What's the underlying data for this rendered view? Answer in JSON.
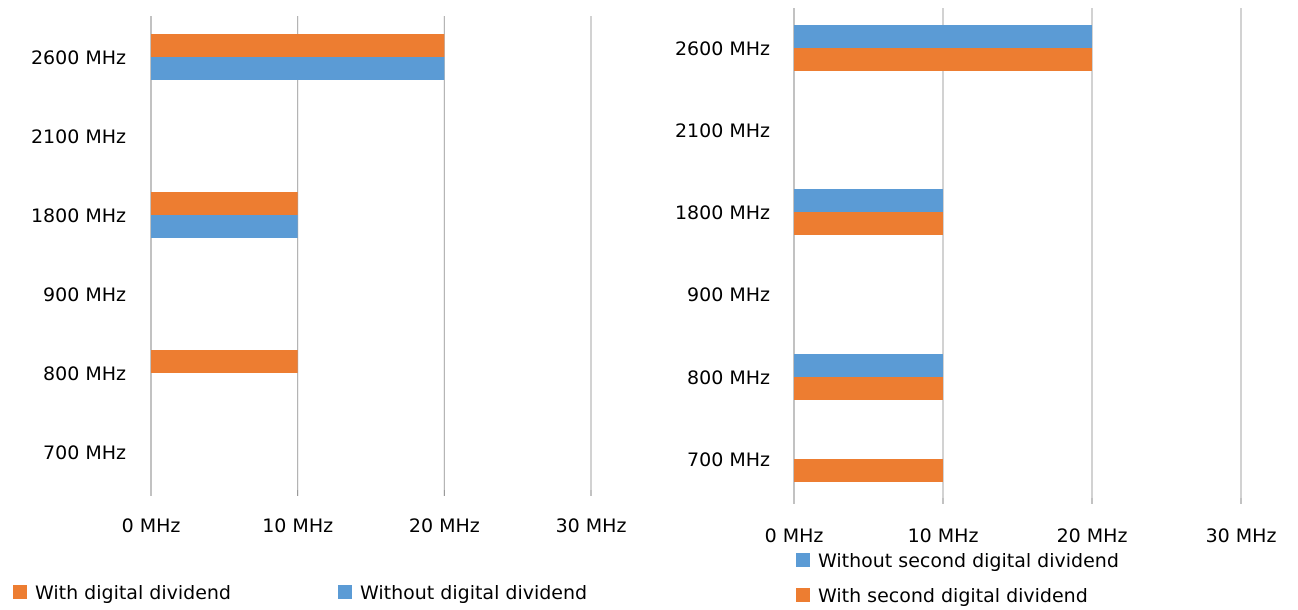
{
  "chart_data": [
    {
      "type": "bar",
      "orientation": "horizontal",
      "title": "",
      "xlabel": "",
      "ylabel": "",
      "categories": [
        "700 MHz",
        "800 MHz",
        "900 MHz",
        "1800 MHz",
        "2100 MHz",
        "2600 MHz"
      ],
      "x_ticks": [
        "0 MHz",
        "10 MHz",
        "20 MHz",
        "30 MHz"
      ],
      "xlim": [
        0,
        30
      ],
      "grid": "vertical",
      "series": [
        {
          "name": "With digital dividend",
          "color": "#ED7D31",
          "values": [
            0,
            10,
            0,
            10,
            0,
            20
          ]
        },
        {
          "name": "Without digital dividend",
          "color": "#5B9BD5",
          "values": [
            0,
            0,
            0,
            10,
            0,
            20
          ]
        }
      ],
      "legend_position": "bottom"
    },
    {
      "type": "bar",
      "orientation": "horizontal",
      "title": "",
      "xlabel": "",
      "ylabel": "",
      "categories": [
        "700 MHz",
        "800 MHz",
        "900 MHz",
        "1800 MHz",
        "2100 MHz",
        "2600 MHz"
      ],
      "x_ticks": [
        "0 MHz",
        "10 MHz",
        "20 MHz",
        "30 MHz"
      ],
      "xlim": [
        0,
        30
      ],
      "grid": "vertical",
      "series": [
        {
          "name": "Without second digital dividend",
          "color": "#5B9BD5",
          "values": [
            0,
            10,
            0,
            10,
            0,
            20
          ]
        },
        {
          "name": "With second digital dividend",
          "color": "#ED7D31",
          "values": [
            10,
            10,
            0,
            10,
            0,
            20
          ]
        }
      ],
      "legend_position": "bottom"
    }
  ]
}
